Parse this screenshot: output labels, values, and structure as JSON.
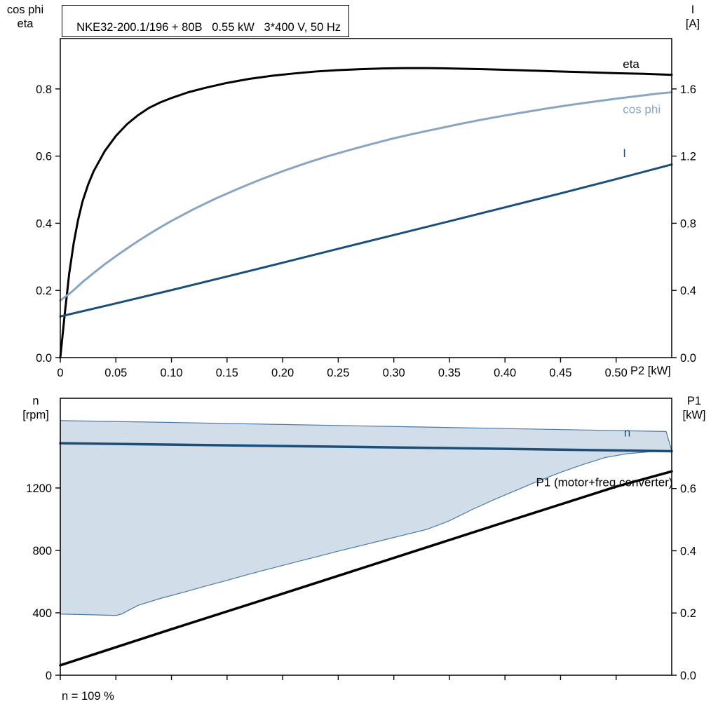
{
  "header": {
    "title": "NKE32-200.1/196 + 80B   0.55 kW   3*400 V, 50 Hz"
  },
  "corners": {
    "top_left": [
      "cos phi",
      "eta"
    ],
    "top_right": [
      "I",
      "[A]"
    ],
    "bottom_left": [
      "n",
      "[rpm]"
    ],
    "bottom_right": [
      "P1",
      "[kW]"
    ]
  },
  "colors": {
    "black": "#000000",
    "dark_blue": "#1b4f7a",
    "light_blue": "#88a6c4",
    "band_fill": "#ccd9e6",
    "band_stroke": "#4a79a8"
  },
  "chart_data": [
    {
      "type": "line",
      "title": "NKE32-200.1/196 + 80B   0.55 kW   3*400 V, 50 Hz",
      "x": {
        "min": 0,
        "max": 0.55,
        "ticks": [
          0,
          0.05,
          0.1,
          0.15,
          0.2,
          0.25,
          0.3,
          0.35,
          0.4,
          0.45,
          0.5
        ],
        "tick_labels": [
          "0",
          "0.05",
          "0.10",
          "0.15",
          "0.20",
          "0.25",
          "0.30",
          "0.35",
          "0.40",
          "0.45",
          "0.50"
        ],
        "label": "P2 [kW]",
        "show_tick_labels": true
      },
      "y_left": {
        "min": 0,
        "max": 0.95,
        "ticks": [
          0,
          0.2,
          0.4,
          0.6,
          0.8
        ],
        "tick_labels": [
          "0.0",
          "0.2",
          "0.4",
          "0.6",
          "0.8"
        ],
        "label": "cos phi / eta"
      },
      "y_right": {
        "min": 0,
        "max": 1.9,
        "ticks": [
          0,
          0.4,
          0.8,
          1.2,
          1.6
        ],
        "tick_labels": [
          "0.0",
          "0.4",
          "0.8",
          "1.2",
          "1.6"
        ],
        "label": "I [A]"
      },
      "series": [
        {
          "name": "eta",
          "color": "#000000",
          "width": 3,
          "axis": "left",
          "points": [
            [
              0,
              0
            ],
            [
              0.004,
              0.13
            ],
            [
              0.008,
              0.25
            ],
            [
              0.012,
              0.34
            ],
            [
              0.016,
              0.41
            ],
            [
              0.02,
              0.465
            ],
            [
              0.025,
              0.515
            ],
            [
              0.03,
              0.555
            ],
            [
              0.04,
              0.615
            ],
            [
              0.05,
              0.66
            ],
            [
              0.06,
              0.695
            ],
            [
              0.07,
              0.722
            ],
            [
              0.08,
              0.744
            ],
            [
              0.09,
              0.76
            ],
            [
              0.1,
              0.773
            ],
            [
              0.115,
              0.79
            ],
            [
              0.13,
              0.803
            ],
            [
              0.15,
              0.818
            ],
            [
              0.17,
              0.83
            ],
            [
              0.19,
              0.839
            ],
            [
              0.21,
              0.846
            ],
            [
              0.23,
              0.852
            ],
            [
              0.25,
              0.856
            ],
            [
              0.27,
              0.859
            ],
            [
              0.29,
              0.861
            ],
            [
              0.31,
              0.862
            ],
            [
              0.33,
              0.862
            ],
            [
              0.35,
              0.861
            ],
            [
              0.38,
              0.859
            ],
            [
              0.41,
              0.856
            ],
            [
              0.44,
              0.853
            ],
            [
              0.47,
              0.85
            ],
            [
              0.5,
              0.847
            ],
            [
              0.525,
              0.845
            ],
            [
              0.55,
              0.842
            ]
          ]
        },
        {
          "name": "cos phi",
          "color": "#88a6c4",
          "width": 3,
          "axis": "left",
          "points": [
            [
              0,
              0.17
            ],
            [
              0.01,
              0.195
            ],
            [
              0.02,
              0.225
            ],
            [
              0.03,
              0.252
            ],
            [
              0.04,
              0.278
            ],
            [
              0.05,
              0.302
            ],
            [
              0.06,
              0.325
            ],
            [
              0.07,
              0.347
            ],
            [
              0.08,
              0.368
            ],
            [
              0.09,
              0.388
            ],
            [
              0.1,
              0.407
            ],
            [
              0.12,
              0.442
            ],
            [
              0.14,
              0.474
            ],
            [
              0.16,
              0.503
            ],
            [
              0.18,
              0.53
            ],
            [
              0.2,
              0.555
            ],
            [
              0.22,
              0.578
            ],
            [
              0.24,
              0.599
            ],
            [
              0.26,
              0.618
            ],
            [
              0.28,
              0.636
            ],
            [
              0.3,
              0.653
            ],
            [
              0.32,
              0.668
            ],
            [
              0.34,
              0.682
            ],
            [
              0.36,
              0.696
            ],
            [
              0.38,
              0.709
            ],
            [
              0.4,
              0.721
            ],
            [
              0.42,
              0.732
            ],
            [
              0.44,
              0.743
            ],
            [
              0.46,
              0.753
            ],
            [
              0.48,
              0.762
            ],
            [
              0.5,
              0.771
            ],
            [
              0.52,
              0.779
            ],
            [
              0.54,
              0.787
            ],
            [
              0.55,
              0.79
            ]
          ]
        },
        {
          "name": "I",
          "color": "#1b4f7a",
          "width": 3,
          "axis": "right",
          "points": [
            [
              0,
              0.245
            ],
            [
              0.05,
              0.323
            ],
            [
              0.1,
              0.402
            ],
            [
              0.15,
              0.483
            ],
            [
              0.2,
              0.565
            ],
            [
              0.25,
              0.648
            ],
            [
              0.3,
              0.73
            ],
            [
              0.35,
              0.812
            ],
            [
              0.4,
              0.895
            ],
            [
              0.45,
              0.978
            ],
            [
              0.5,
              1.063
            ],
            [
              0.55,
              1.15
            ]
          ]
        }
      ],
      "annotations": [
        {
          "text": "eta",
          "x": 0.506,
          "y": 0.862,
          "axis": "left",
          "color": "#000000",
          "anchor": "start"
        },
        {
          "text": "cos phi",
          "x": 0.506,
          "y": 0.728,
          "axis": "left",
          "color": "#88a6c4",
          "anchor": "start"
        },
        {
          "text": "I",
          "x": 0.506,
          "y": 0.597,
          "axis": "left",
          "color": "#1b4f7a",
          "anchor": "start"
        }
      ]
    },
    {
      "type": "line",
      "note": "n = 109 %",
      "x": {
        "min": 0,
        "max": 0.55,
        "ticks": [
          0,
          0.05,
          0.1,
          0.15,
          0.2,
          0.25,
          0.3,
          0.35,
          0.4,
          0.45,
          0.5
        ],
        "tick_labels": [
          "",
          "",
          "",
          "",
          "",
          "",
          "",
          "",
          "",
          "",
          ""
        ],
        "label": "",
        "show_tick_labels": false
      },
      "y_left": {
        "min": 0,
        "max": 1775,
        "ticks": [
          0,
          400,
          800,
          1200
        ],
        "tick_labels": [
          "0",
          "400",
          "800",
          "1200"
        ],
        "label": "n [rpm]"
      },
      "y_right": {
        "min": 0,
        "max": 0.89,
        "ticks": [
          0,
          0.2,
          0.4,
          0.6
        ],
        "tick_labels": [
          "0.0",
          "0.2",
          "0.4",
          "0.6"
        ],
        "label": "P1 [kW]"
      },
      "bands": [
        {
          "name": "speed-control-range",
          "axis": "left",
          "fill": "#ccd9e6",
          "opacity": 0.9,
          "stroke": "#4a79a8",
          "upper": [
            [
              0,
              1632
            ],
            [
              0.1,
              1620
            ],
            [
              0.2,
              1607
            ],
            [
              0.3,
              1594
            ],
            [
              0.4,
              1581
            ],
            [
              0.5,
              1568
            ],
            [
              0.545,
              1562
            ]
          ],
          "lower": [
            [
              0,
              392
            ],
            [
              0.03,
              387
            ],
            [
              0.05,
              383
            ],
            [
              0.055,
              392
            ],
            [
              0.07,
              448
            ],
            [
              0.09,
              492
            ],
            [
              0.11,
              530
            ],
            [
              0.13,
              570
            ],
            [
              0.15,
              608
            ],
            [
              0.17,
              648
            ],
            [
              0.19,
              685
            ],
            [
              0.21,
              722
            ],
            [
              0.23,
              758
            ],
            [
              0.25,
              795
            ],
            [
              0.27,
              830
            ],
            [
              0.29,
              865
            ],
            [
              0.31,
              900
            ],
            [
              0.33,
              935
            ],
            [
              0.35,
              990
            ],
            [
              0.37,
              1060
            ],
            [
              0.39,
              1125
            ],
            [
              0.41,
              1185
            ],
            [
              0.43,
              1245
            ],
            [
              0.45,
              1300
            ],
            [
              0.47,
              1350
            ],
            [
              0.49,
              1395
            ],
            [
              0.51,
              1420
            ],
            [
              0.53,
              1432
            ],
            [
              0.55,
              1438
            ]
          ]
        }
      ],
      "series": [
        {
          "name": "n",
          "color": "#1b4f7a",
          "width": 3.5,
          "axis": "left",
          "points": [
            [
              0,
              1487
            ],
            [
              0.1,
              1478
            ],
            [
              0.2,
              1469
            ],
            [
              0.3,
              1460
            ],
            [
              0.4,
              1451
            ],
            [
              0.5,
              1441
            ],
            [
              0.55,
              1436
            ]
          ]
        },
        {
          "name": "P1 (motor+freq.converter)",
          "color": "#000000",
          "width": 3.5,
          "axis": "right",
          "points": [
            [
              0,
              0.032
            ],
            [
              0.1,
              0.148
            ],
            [
              0.2,
              0.262
            ],
            [
              0.3,
              0.377
            ],
            [
              0.4,
              0.492
            ],
            [
              0.5,
              0.606
            ],
            [
              0.55,
              0.655
            ]
          ]
        }
      ],
      "annotations": [
        {
          "text": "n",
          "x": 0.507,
          "y": 1530,
          "axis": "left",
          "color": "#1b4f7a",
          "anchor": "start"
        },
        {
          "text": "P1 (motor+freq.converter)",
          "x": 0.551,
          "y": 1210,
          "axis": "left",
          "color": "#000000",
          "anchor": "end"
        }
      ]
    }
  ]
}
